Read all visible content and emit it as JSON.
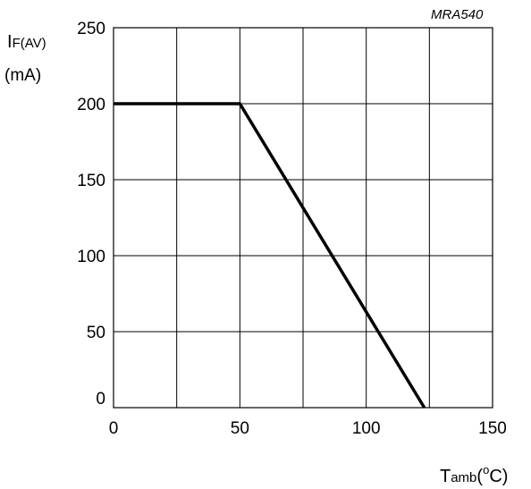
{
  "chart_data": {
    "type": "line",
    "code": "MRA540",
    "ylabel": {
      "main": "I",
      "sub": "F(AV)",
      "unit": "(mA)"
    },
    "xlabel": {
      "main": "T",
      "sub": "amb",
      "open": "(",
      "degree": "o",
      "unit": "C)"
    },
    "xlim": [
      0,
      150
    ],
    "ylim": [
      0,
      250
    ],
    "x_ticks": [
      "0",
      "50",
      "100",
      "150"
    ],
    "y_ticks": [
      "0",
      "50",
      "100",
      "150",
      "200",
      "250"
    ],
    "grid": true,
    "x_grid_step": 25,
    "y_grid_step": 50,
    "series": [
      {
        "x": [
          0,
          50,
          123
        ],
        "y": [
          200,
          200,
          0
        ],
        "color": "#000000"
      }
    ]
  }
}
